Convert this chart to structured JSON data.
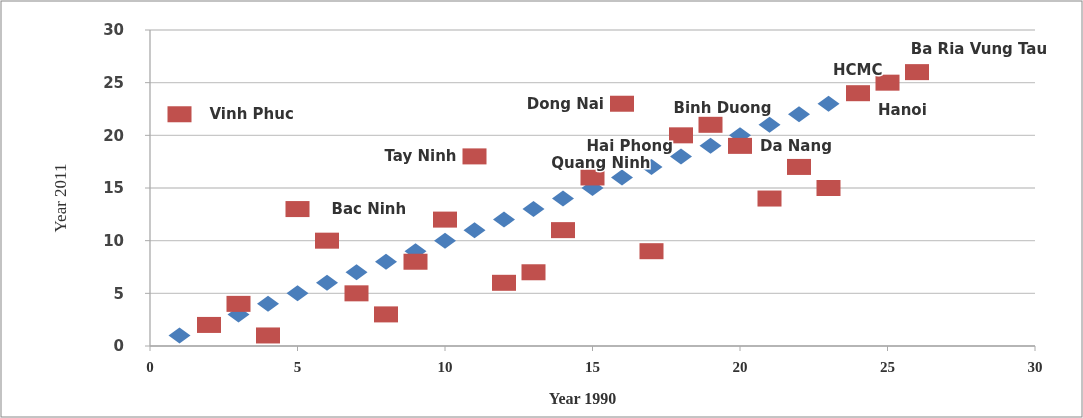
{
  "chart_data": {
    "type": "scatter",
    "xlabel": "Year 1990",
    "ylabel": "Year 2011",
    "xlim": [
      0,
      30
    ],
    "ylim": [
      0,
      30
    ],
    "xticks": [
      0,
      5,
      10,
      15,
      20,
      25,
      30
    ],
    "yticks": [
      0,
      5,
      10,
      15,
      20,
      25,
      30
    ],
    "grid": "y",
    "series": [
      {
        "color": "#4a7ebb",
        "marker": "diamond",
        "x": [
          1,
          3,
          4,
          5,
          6,
          7,
          8,
          9,
          10,
          11,
          12,
          13,
          14,
          15,
          16,
          17,
          18,
          19,
          20,
          21,
          22,
          23
        ],
        "values": [
          1,
          3,
          4,
          5,
          6,
          7,
          8,
          9,
          10,
          11,
          12,
          13,
          14,
          15,
          16,
          17,
          18,
          19,
          20,
          21,
          22,
          23
        ]
      },
      {
        "color": "#c0504d",
        "marker": "square",
        "x": [
          1,
          2,
          3,
          4,
          5,
          6,
          7,
          8,
          9,
          10,
          11,
          12,
          13,
          14,
          15,
          16,
          17,
          18,
          19,
          20,
          21,
          22,
          23,
          24,
          25,
          26
        ],
        "values": [
          22,
          2,
          4,
          1,
          13,
          10,
          5,
          3,
          8,
          12,
          18,
          6,
          7,
          11,
          16,
          23,
          9,
          20,
          21,
          19,
          14,
          17,
          15,
          24,
          25,
          26
        ]
      }
    ],
    "annotations": [
      {
        "text": "Vinh Phuc",
        "x": 1,
        "y": 22
      },
      {
        "text": "Bac Ninh",
        "x": 5,
        "y": 13
      },
      {
        "text": "Tay Ninh",
        "x": 11,
        "y": 18
      },
      {
        "text": "Dong Nai",
        "x": 16,
        "y": 23
      },
      {
        "text": "Quang Ninh",
        "x": 15,
        "y": 16
      },
      {
        "text": "Hai Phong",
        "x": 18,
        "y": 20
      },
      {
        "text": "Binh Duong",
        "x": 19,
        "y": 21
      },
      {
        "text": "Da Nang",
        "x": 20,
        "y": 19
      },
      {
        "text": "Hanoi",
        "x": 24,
        "y": 24
      },
      {
        "text": "HCMC",
        "x": 25,
        "y": 25
      },
      {
        "text": "Ba Ria Vung Tau",
        "x": 26,
        "y": 26
      }
    ]
  }
}
